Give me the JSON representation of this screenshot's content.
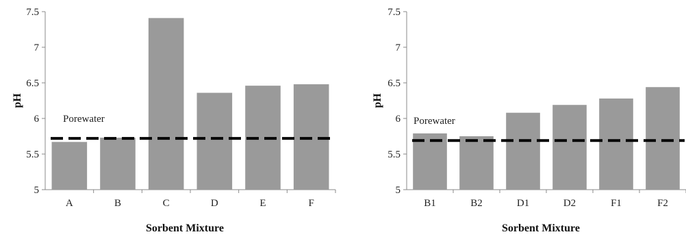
{
  "chart_data": [
    {
      "type": "bar",
      "categories": [
        "A",
        "B",
        "C",
        "D",
        "E",
        "F"
      ],
      "values": [
        5.67,
        5.73,
        7.41,
        6.36,
        6.46,
        6.48
      ],
      "ylabel": "pH",
      "xlabel": "Sorbent Mixture",
      "ylim": [
        5,
        7.5
      ],
      "yticks": [
        "5",
        "5.5",
        "6",
        "6.5",
        "7",
        "7.5"
      ],
      "reference_line": {
        "label": "Porewater",
        "value": 5.72,
        "style": "dashed"
      },
      "bar_color": "#9a9a9a",
      "grid": false
    },
    {
      "type": "bar",
      "categories": [
        "B1",
        "B2",
        "D1",
        "D2",
        "F1",
        "F2"
      ],
      "values": [
        5.79,
        5.75,
        6.08,
        6.19,
        6.28,
        6.44
      ],
      "ylabel": "pH",
      "xlabel": "Sorbent Mixture",
      "ylim": [
        5,
        7.5
      ],
      "yticks": [
        "5",
        "5.5",
        "6",
        "6.5",
        "7",
        "7.5"
      ],
      "reference_line": {
        "label": "Porewater",
        "value": 5.69,
        "style": "dashed"
      },
      "bar_color": "#9a9a9a",
      "grid": false
    }
  ]
}
